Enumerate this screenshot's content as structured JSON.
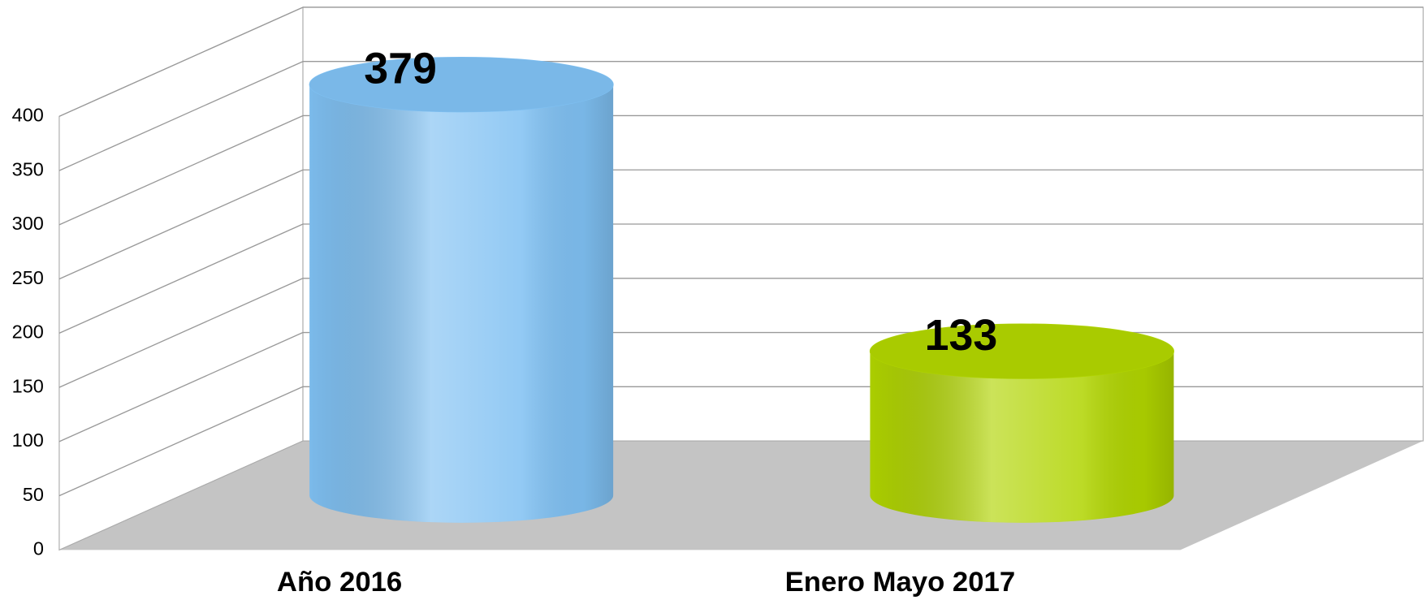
{
  "chart_data": {
    "type": "bar3d",
    "categories": [
      "Año 2016",
      "Enero Mayo 2017"
    ],
    "values": [
      379,
      133
    ],
    "colors": [
      "#7fc0f2",
      "#b0d400"
    ],
    "ylim": [
      0,
      400
    ],
    "yticks": [
      0,
      50,
      100,
      150,
      200,
      250,
      300,
      350,
      400
    ],
    "grid": true
  }
}
